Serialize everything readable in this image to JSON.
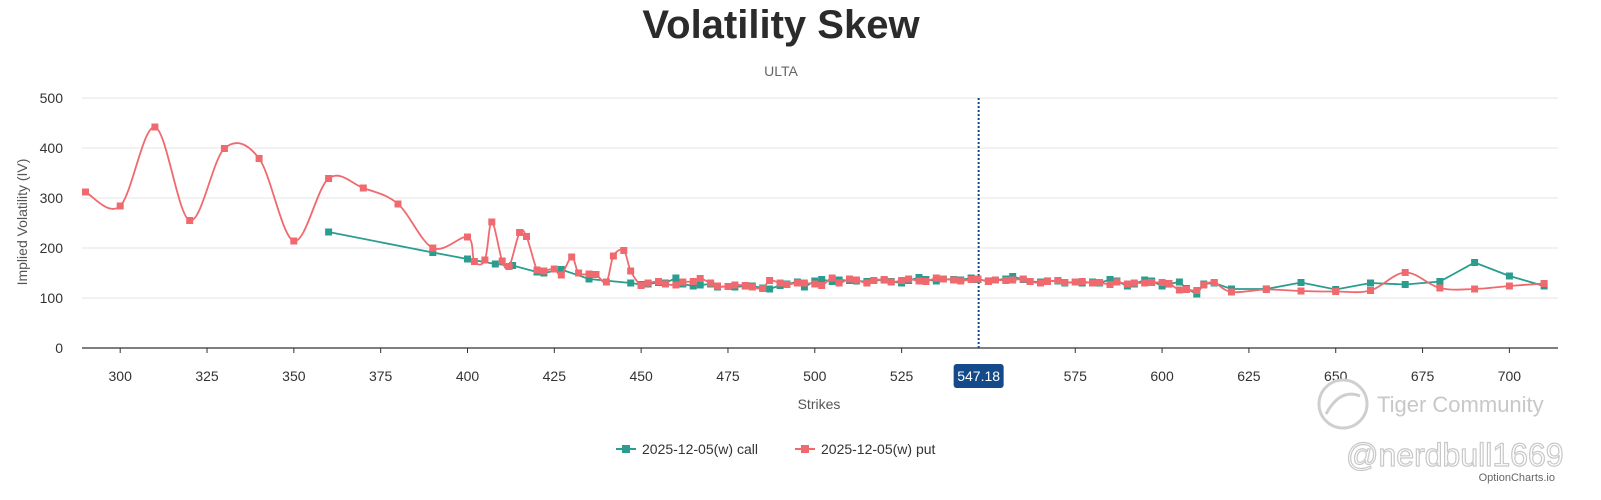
{
  "colors": {
    "call": "#2a9d8f",
    "put": "#f0696f",
    "spot": "#154a8a",
    "grid": "#e6e6e6"
  },
  "watermarks": {
    "community": "Tiger Community",
    "handle": "@nerdbull1669",
    "source": "OptionCharts.io"
  },
  "chart_data": {
    "type": "line",
    "title": "Volatility Skew",
    "subtitle": "ULTA",
    "xlabel": "Strikes",
    "ylabel": "Implied Volatility (IV)",
    "xlim": [
      289,
      714
    ],
    "ylim": [
      0,
      500
    ],
    "xticks": [
      300,
      325,
      350,
      375,
      400,
      425,
      450,
      475,
      500,
      525,
      575,
      600,
      625,
      650,
      675,
      700
    ],
    "yticks": [
      0,
      100,
      200,
      300,
      400,
      500
    ],
    "grid": true,
    "legend": "bottom",
    "spot": {
      "value": 547.18,
      "label": "547.18"
    },
    "series": [
      {
        "name": "2025-12-05(w) call",
        "smooth": false,
        "points": [
          [
            360,
            232
          ],
          [
            390,
            191
          ],
          [
            400,
            178
          ],
          [
            408,
            168
          ],
          [
            413,
            165
          ],
          [
            420,
            152
          ],
          [
            422,
            150
          ],
          [
            427,
            157
          ],
          [
            435,
            138
          ],
          [
            447,
            130
          ],
          [
            450,
            127
          ],
          [
            452,
            128
          ],
          [
            455,
            131
          ],
          [
            457,
            130
          ],
          [
            460,
            140
          ],
          [
            462,
            128
          ],
          [
            465,
            124
          ],
          [
            467,
            126
          ],
          [
            470,
            128
          ],
          [
            472,
            122
          ],
          [
            475,
            123
          ],
          [
            477,
            122
          ],
          [
            480,
            124
          ],
          [
            482,
            124
          ],
          [
            485,
            120
          ],
          [
            487,
            118
          ],
          [
            490,
            125
          ],
          [
            492,
            128
          ],
          [
            495,
            132
          ],
          [
            497,
            122
          ],
          [
            500,
            134
          ],
          [
            502,
            137
          ],
          [
            505,
            133
          ],
          [
            507,
            136
          ],
          [
            510,
            135
          ],
          [
            512,
            134
          ],
          [
            515,
            133
          ],
          [
            517,
            135
          ],
          [
            520,
            136
          ],
          [
            522,
            133
          ],
          [
            525,
            130
          ],
          [
            527,
            135
          ],
          [
            530,
            141
          ],
          [
            532,
            137
          ],
          [
            535,
            134
          ],
          [
            537,
            138
          ],
          [
            540,
            137
          ],
          [
            542,
            136
          ],
          [
            545,
            140
          ],
          [
            547,
            137
          ],
          [
            550,
            134
          ],
          [
            552,
            136
          ],
          [
            555,
            138
          ],
          [
            557,
            143
          ],
          [
            560,
            137
          ],
          [
            562,
            133
          ],
          [
            565,
            132
          ],
          [
            567,
            134
          ],
          [
            570,
            134
          ],
          [
            572,
            130
          ],
          [
            575,
            132
          ],
          [
            577,
            130
          ],
          [
            580,
            132
          ],
          [
            582,
            130
          ],
          [
            585,
            137
          ],
          [
            587,
            134
          ],
          [
            590,
            124
          ],
          [
            592,
            128
          ],
          [
            595,
            136
          ],
          [
            597,
            134
          ],
          [
            600,
            124
          ],
          [
            602,
            128
          ],
          [
            605,
            132
          ],
          [
            607,
            119
          ],
          [
            610,
            108
          ],
          [
            612,
            128
          ],
          [
            615,
            130
          ],
          [
            620,
            118
          ],
          [
            630,
            118
          ],
          [
            640,
            131
          ],
          [
            650,
            117
          ],
          [
            660,
            130
          ],
          [
            670,
            127
          ],
          [
            680,
            133
          ],
          [
            690,
            171
          ],
          [
            700,
            144
          ],
          [
            710,
            124
          ]
        ]
      },
      {
        "name": "2025-12-05(w) put",
        "smooth": true,
        "points": [
          [
            290,
            312
          ],
          [
            300,
            284
          ],
          [
            310,
            442
          ],
          [
            320,
            255
          ],
          [
            330,
            399
          ],
          [
            340,
            379
          ],
          [
            350,
            214
          ],
          [
            360,
            339
          ],
          [
            370,
            320
          ],
          [
            380,
            288
          ],
          [
            390,
            200
          ],
          [
            400,
            222
          ],
          [
            402,
            173
          ],
          [
            405,
            176
          ],
          [
            407,
            252
          ],
          [
            410,
            174
          ],
          [
            412,
            163
          ],
          [
            415,
            231
          ],
          [
            417,
            223
          ],
          [
            420,
            156
          ],
          [
            422,
            154
          ],
          [
            425,
            158
          ],
          [
            427,
            146
          ],
          [
            430,
            182
          ],
          [
            432,
            150
          ],
          [
            435,
            148
          ],
          [
            437,
            147
          ],
          [
            440,
            132
          ],
          [
            442,
            184
          ],
          [
            445,
            195
          ],
          [
            447,
            154
          ],
          [
            450,
            125
          ],
          [
            452,
            130
          ],
          [
            455,
            133
          ],
          [
            457,
            128
          ],
          [
            460,
            126
          ],
          [
            462,
            132
          ],
          [
            465,
            133
          ],
          [
            467,
            139
          ],
          [
            470,
            130
          ],
          [
            472,
            124
          ],
          [
            475,
            123
          ],
          [
            477,
            126
          ],
          [
            480,
            125
          ],
          [
            482,
            122
          ],
          [
            485,
            119
          ],
          [
            487,
            135
          ],
          [
            490,
            130
          ],
          [
            492,
            127
          ],
          [
            495,
            130
          ],
          [
            497,
            130
          ],
          [
            500,
            128
          ],
          [
            502,
            125
          ],
          [
            505,
            140
          ],
          [
            507,
            130
          ],
          [
            510,
            138
          ],
          [
            512,
            136
          ],
          [
            515,
            130
          ],
          [
            517,
            135
          ],
          [
            520,
            137
          ],
          [
            522,
            132
          ],
          [
            525,
            135
          ],
          [
            527,
            138
          ],
          [
            530,
            134
          ],
          [
            532,
            133
          ],
          [
            535,
            140
          ],
          [
            537,
            138
          ],
          [
            540,
            136
          ],
          [
            542,
            134
          ],
          [
            545,
            137
          ],
          [
            547,
            138
          ],
          [
            550,
            133
          ],
          [
            552,
            136
          ],
          [
            555,
            135
          ],
          [
            557,
            136
          ],
          [
            560,
            138
          ],
          [
            562,
            133
          ],
          [
            565,
            130
          ],
          [
            567,
            133
          ],
          [
            570,
            135
          ],
          [
            572,
            131
          ],
          [
            575,
            132
          ],
          [
            577,
            133
          ],
          [
            580,
            130
          ],
          [
            582,
            131
          ],
          [
            585,
            127
          ],
          [
            587,
            132
          ],
          [
            590,
            128
          ],
          [
            592,
            130
          ],
          [
            595,
            130
          ],
          [
            597,
            131
          ],
          [
            600,
            131
          ],
          [
            602,
            129
          ],
          [
            605,
            116
          ],
          [
            607,
            117
          ],
          [
            610,
            115
          ],
          [
            612,
            126
          ],
          [
            615,
            131
          ],
          [
            620,
            112
          ],
          [
            630,
            117
          ],
          [
            640,
            114
          ],
          [
            650,
            113
          ],
          [
            660,
            115
          ],
          [
            670,
            151
          ],
          [
            680,
            120
          ],
          [
            690,
            118
          ],
          [
            700,
            124
          ],
          [
            710,
            129
          ]
        ]
      }
    ]
  }
}
